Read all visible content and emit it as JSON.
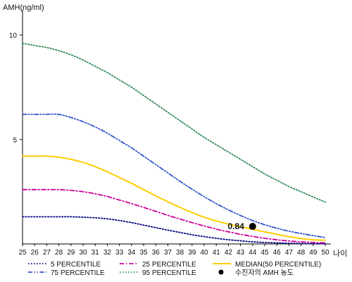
{
  "chart_data": {
    "type": "line",
    "ylabel": "AMH(ng/ml)",
    "xlabel": "나이",
    "xlim": [
      25,
      50
    ],
    "ylim": [
      0,
      11
    ],
    "x_ticks": [
      25,
      26,
      27,
      28,
      29,
      30,
      31,
      32,
      33,
      34,
      35,
      36,
      37,
      38,
      39,
      40,
      41,
      42,
      43,
      44,
      45,
      46,
      47,
      48,
      49,
      50
    ],
    "y_ticks": [
      5,
      10
    ],
    "grid": false,
    "legend_position": "bottom",
    "series": [
      {
        "name": "5 PERCENTILE",
        "color": "#000080",
        "style": "dotted",
        "x": [
          25,
          26,
          27,
          28,
          29,
          30,
          31,
          32,
          33,
          34,
          35,
          36,
          37,
          38,
          39,
          40,
          41,
          42,
          43,
          44,
          45,
          46,
          47,
          48,
          49,
          50
        ],
        "values": [
          1.3,
          1.3,
          1.3,
          1.3,
          1.3,
          1.28,
          1.25,
          1.2,
          1.12,
          1.02,
          0.9,
          0.78,
          0.66,
          0.55,
          0.44,
          0.35,
          0.27,
          0.2,
          0.15,
          0.1,
          0.07,
          0.05,
          0.03,
          0.02,
          0.01,
          0.01
        ]
      },
      {
        "name": "25 PERCENTILE",
        "color": "#cc0099",
        "style": "dashdot",
        "x": [
          25,
          26,
          27,
          28,
          29,
          30,
          31,
          32,
          33,
          34,
          35,
          36,
          37,
          38,
          39,
          40,
          41,
          42,
          43,
          44,
          45,
          46,
          47,
          48,
          49,
          50
        ],
        "values": [
          2.6,
          2.6,
          2.6,
          2.6,
          2.56,
          2.5,
          2.4,
          2.27,
          2.1,
          1.93,
          1.75,
          1.56,
          1.37,
          1.19,
          1.02,
          0.86,
          0.71,
          0.58,
          0.46,
          0.36,
          0.27,
          0.2,
          0.14,
          0.1,
          0.07,
          0.05
        ]
      },
      {
        "name": "75 PERCENTILE",
        "color": "#3355cc",
        "style": "dashdotdot",
        "x": [
          25,
          26,
          27,
          28,
          29,
          30,
          31,
          32,
          33,
          34,
          35,
          36,
          37,
          38,
          39,
          40,
          41,
          42,
          43,
          44,
          45,
          46,
          47,
          48,
          49,
          50
        ],
        "values": [
          6.2,
          6.2,
          6.2,
          6.2,
          6.05,
          5.85,
          5.6,
          5.3,
          4.95,
          4.6,
          4.2,
          3.8,
          3.4,
          3.0,
          2.62,
          2.26,
          1.93,
          1.63,
          1.36,
          1.12,
          0.92,
          0.75,
          0.61,
          0.5,
          0.4,
          0.3
        ]
      },
      {
        "name": "95 PERCENTILE",
        "color": "#2e8b57",
        "style": "dotted",
        "x": [
          25,
          26,
          27,
          28,
          29,
          30,
          31,
          32,
          33,
          34,
          35,
          36,
          37,
          38,
          39,
          40,
          41,
          42,
          43,
          44,
          45,
          46,
          47,
          48,
          49,
          50
        ],
        "values": [
          9.6,
          9.5,
          9.4,
          9.25,
          9.05,
          8.8,
          8.5,
          8.2,
          7.85,
          7.5,
          7.1,
          6.7,
          6.3,
          5.9,
          5.5,
          5.1,
          4.75,
          4.4,
          4.05,
          3.7,
          3.35,
          3.05,
          2.75,
          2.5,
          2.25,
          2.0
        ]
      },
      {
        "name": "MEDIAN(50 PERCENTILE)",
        "color": "#ffcc00",
        "style": "solid",
        "x": [
          25,
          26,
          27,
          28,
          29,
          30,
          31,
          32,
          33,
          34,
          35,
          36,
          37,
          38,
          39,
          40,
          41,
          42,
          43,
          44,
          45,
          46,
          47,
          48,
          49,
          50
        ],
        "values": [
          4.2,
          4.2,
          4.2,
          4.15,
          4.05,
          3.9,
          3.7,
          3.45,
          3.18,
          2.9,
          2.6,
          2.3,
          2.02,
          1.75,
          1.5,
          1.28,
          1.1,
          0.95,
          0.82,
          0.7,
          0.58,
          0.46,
          0.35,
          0.26,
          0.2,
          0.18
        ]
      }
    ],
    "marker": {
      "name": "수진자의 AMH 농도",
      "x": 44,
      "y": 0.84,
      "label": "0.84",
      "color": "#000000"
    }
  }
}
